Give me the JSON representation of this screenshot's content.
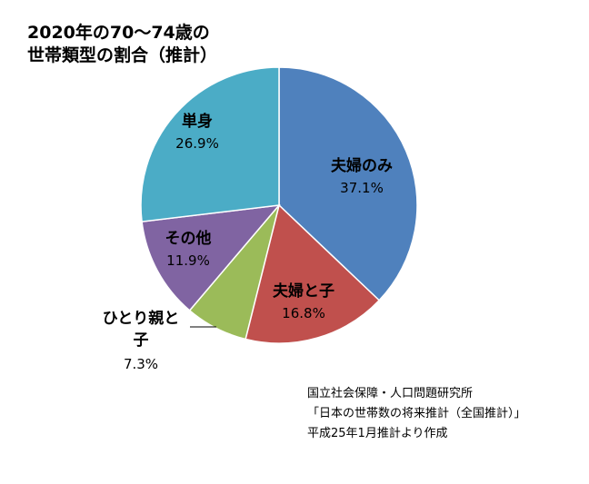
{
  "chart_data": {
    "type": "pie",
    "title": [
      "2020年の70～74歳の",
      "世帯類型の割合（推計）"
    ],
    "start_angle_deg": 0,
    "direction": "clockwise",
    "slices": [
      {
        "label": "夫婦のみ",
        "label_lines": [
          "夫婦のみ"
        ],
        "value": 37.1,
        "value_text": "37.1%",
        "color": "#4F81BD"
      },
      {
        "label": "夫婦と子",
        "label_lines": [
          "夫婦と子"
        ],
        "value": 16.8,
        "value_text": "16.8%",
        "color": "#C0504D"
      },
      {
        "label": "ひとり親と子",
        "label_lines": [
          "ひとり親と",
          "子"
        ],
        "value": 7.3,
        "value_text": "7.3%",
        "color": "#9BBB59"
      },
      {
        "label": "その他",
        "label_lines": [
          "その他"
        ],
        "value": 11.9,
        "value_text": "11.9%",
        "color": "#8064A2"
      },
      {
        "label": "単身",
        "label_lines": [
          "単身"
        ],
        "value": 26.9,
        "value_text": "26.9%",
        "color": "#4BACC6"
      }
    ],
    "source": [
      "国立社会保障・人口問題研究所",
      "「日本の世帯数の将来推計（全国推計）」",
      "平成25年1月推計より作成"
    ]
  }
}
